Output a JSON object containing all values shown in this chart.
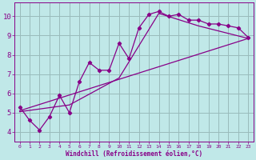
{
  "xlabel": "Windchill (Refroidissement éolien,°C)",
  "bg_color": "#c0e8e8",
  "line_color": "#880088",
  "grid_color": "#99bbbb",
  "xlim": [
    -0.5,
    23.5
  ],
  "ylim": [
    3.5,
    10.7
  ],
  "xticks": [
    0,
    1,
    2,
    3,
    4,
    5,
    6,
    7,
    8,
    9,
    10,
    11,
    12,
    13,
    14,
    15,
    16,
    17,
    18,
    19,
    20,
    21,
    22,
    23
  ],
  "yticks": [
    4,
    5,
    6,
    7,
    8,
    9,
    10
  ],
  "jagged_x": [
    0,
    1,
    2,
    3,
    4,
    5,
    6,
    7,
    8,
    9,
    10,
    11,
    12,
    13,
    14,
    15,
    16,
    17,
    18,
    19,
    20,
    21,
    22,
    23
  ],
  "jagged_y": [
    5.3,
    4.6,
    4.1,
    4.8,
    5.9,
    5.0,
    6.6,
    7.6,
    7.2,
    7.2,
    8.6,
    7.8,
    9.4,
    10.1,
    10.25,
    10.0,
    10.1,
    9.8,
    9.8,
    9.6,
    9.6,
    9.5,
    9.4,
    8.9
  ],
  "line1_x": [
    0,
    23
  ],
  "line1_y": [
    5.1,
    8.85
  ],
  "line2_x": [
    0,
    5,
    10,
    14,
    18,
    23
  ],
  "line2_y": [
    5.05,
    5.4,
    6.8,
    10.15,
    9.5,
    8.85
  ]
}
